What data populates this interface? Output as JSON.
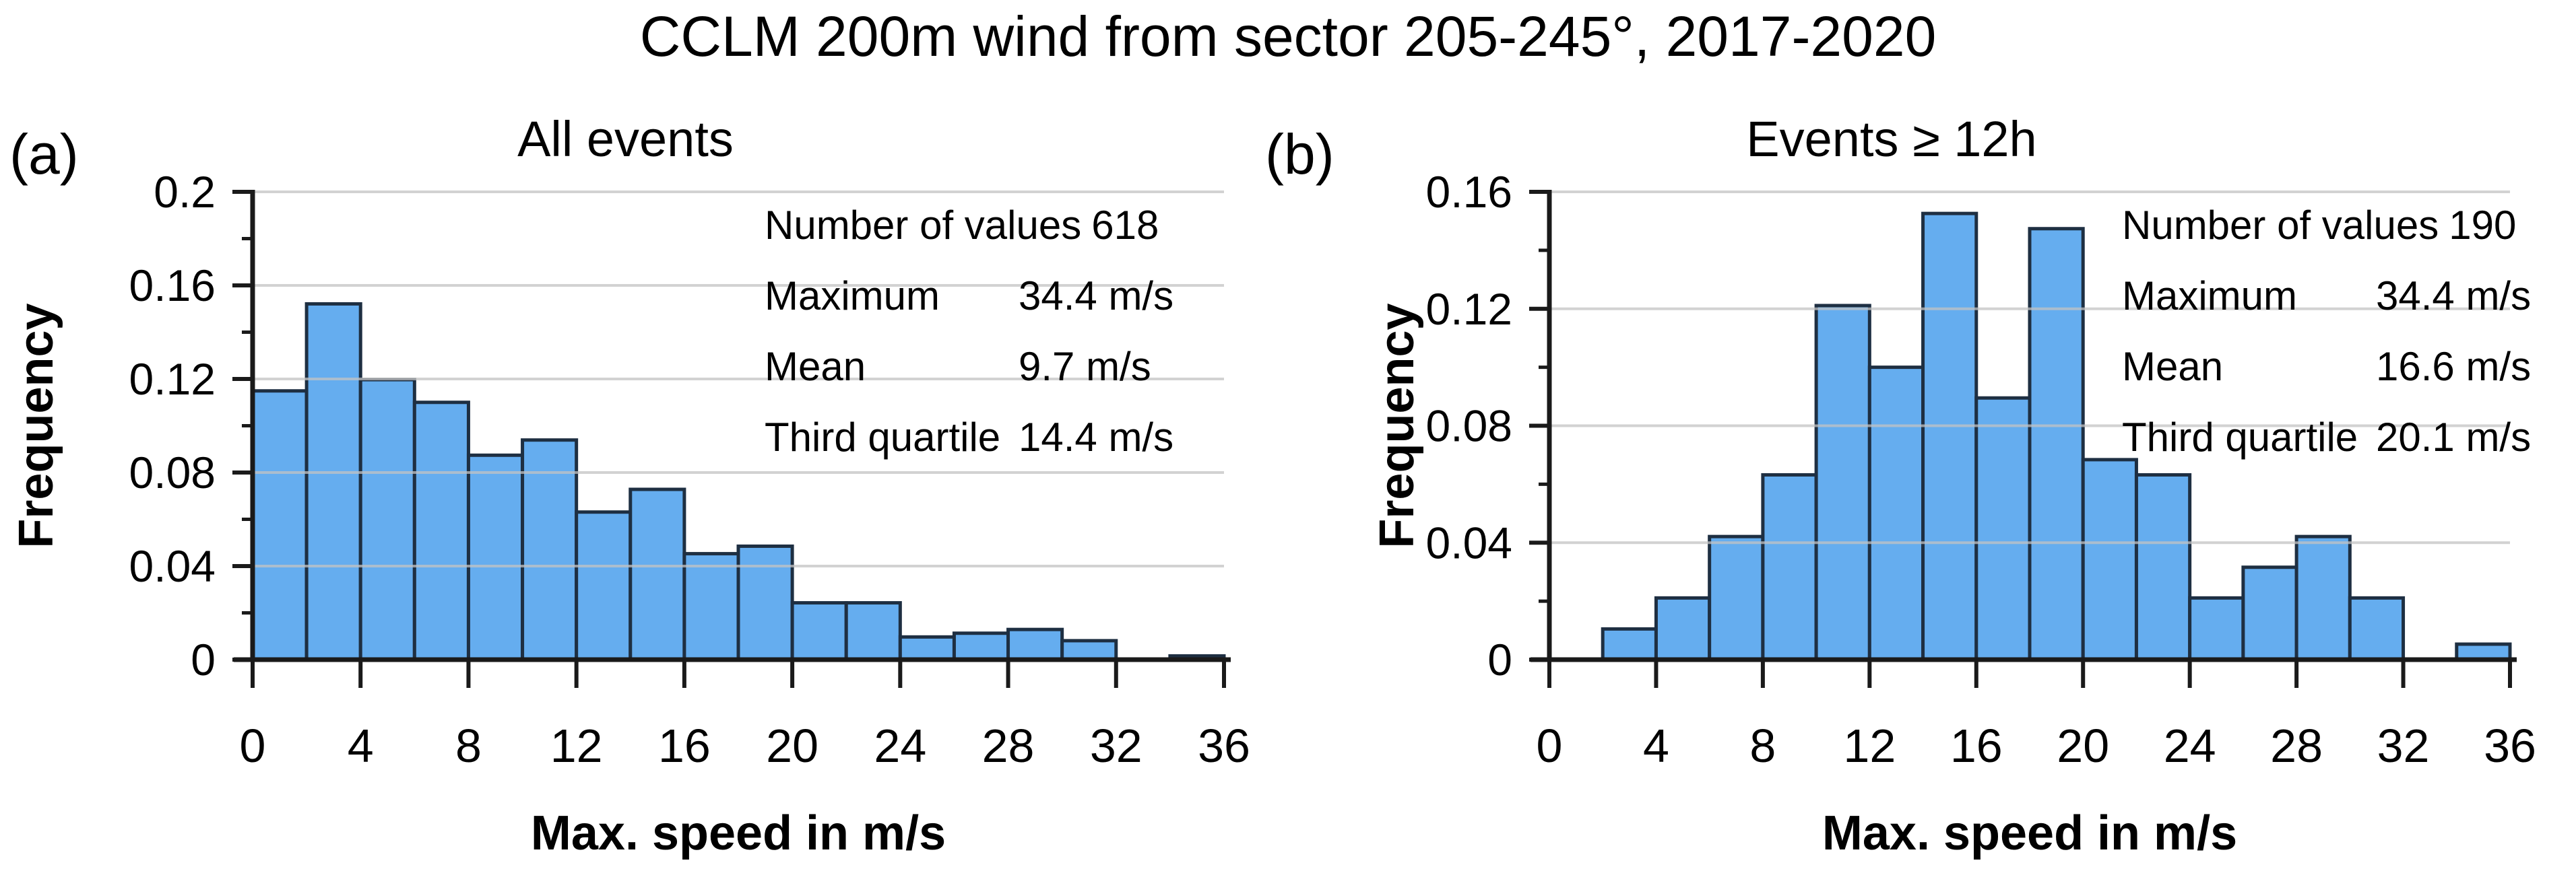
{
  "figure_title": "CCLM 200m wind from sector 205-245°, 2017-2020",
  "colors": {
    "bar_fill": "#65ADEF",
    "bar_edge": "#1E2F42",
    "grid": "#C3C3C3",
    "axis": "#1A1A1A",
    "text": "#000000",
    "background": "#FFFFFF"
  },
  "chart_data": [
    {
      "type": "bar",
      "panel_label": "(a)",
      "title": "All events",
      "xlabel": "Max. speed in m/s",
      "ylabel": "Frequency",
      "xlim": [
        0,
        36
      ],
      "ylim": [
        0,
        0.2
      ],
      "x_ticks": [
        0,
        4,
        8,
        12,
        16,
        20,
        24,
        28,
        32,
        36
      ],
      "y_ticks": [
        "0",
        "0.04",
        "0.08",
        "0.12",
        "0.16",
        "0.2"
      ],
      "y_minor_step": 0.02,
      "grid": "on",
      "legend": "none",
      "bins": {
        "start": 0,
        "width": 2
      },
      "frequencies": [
        0.1149,
        0.1521,
        0.1197,
        0.11,
        0.0874,
        0.0939,
        0.0631,
        0.0728,
        0.0453,
        0.0485,
        0.0243,
        0.0243,
        0.0097,
        0.0113,
        0.0129,
        0.0081,
        0,
        0.0016
      ],
      "stats": [
        {
          "label": "Number of values",
          "value": "618"
        },
        {
          "label": "Maximum",
          "value": "34.4 m/s"
        },
        {
          "label": "Mean",
          "value": "9.7 m/s"
        },
        {
          "label": "Third quartile",
          "value": "14.4 m/s"
        }
      ]
    },
    {
      "type": "bar",
      "panel_label": "(b)",
      "title": "Events ≥ 12h",
      "xlabel": "Max. speed in m/s",
      "ylabel": "Frequency",
      "xlim": [
        0,
        36
      ],
      "ylim": [
        0,
        0.16
      ],
      "x_ticks": [
        0,
        4,
        8,
        12,
        16,
        20,
        24,
        28,
        32,
        36
      ],
      "y_ticks": [
        "0",
        "0.04",
        "0.08",
        "0.12",
        "0.16"
      ],
      "y_minor_step": 0.02,
      "grid": "on",
      "legend": "none",
      "bins": {
        "start": 0,
        "width": 2
      },
      "frequencies": [
        0,
        0.0105,
        0.0211,
        0.0421,
        0.0632,
        0.1211,
        0.1,
        0.1526,
        0.0895,
        0.1474,
        0.0684,
        0.0632,
        0.0211,
        0.0316,
        0.0421,
        0.0211,
        0,
        0.0053
      ],
      "stats": [
        {
          "label": "Number of values",
          "value": "190"
        },
        {
          "label": "Maximum",
          "value": "34.4 m/s"
        },
        {
          "label": "Mean",
          "value": "16.6 m/s"
        },
        {
          "label": "Third quartile",
          "value": "20.1 m/s"
        }
      ]
    }
  ]
}
